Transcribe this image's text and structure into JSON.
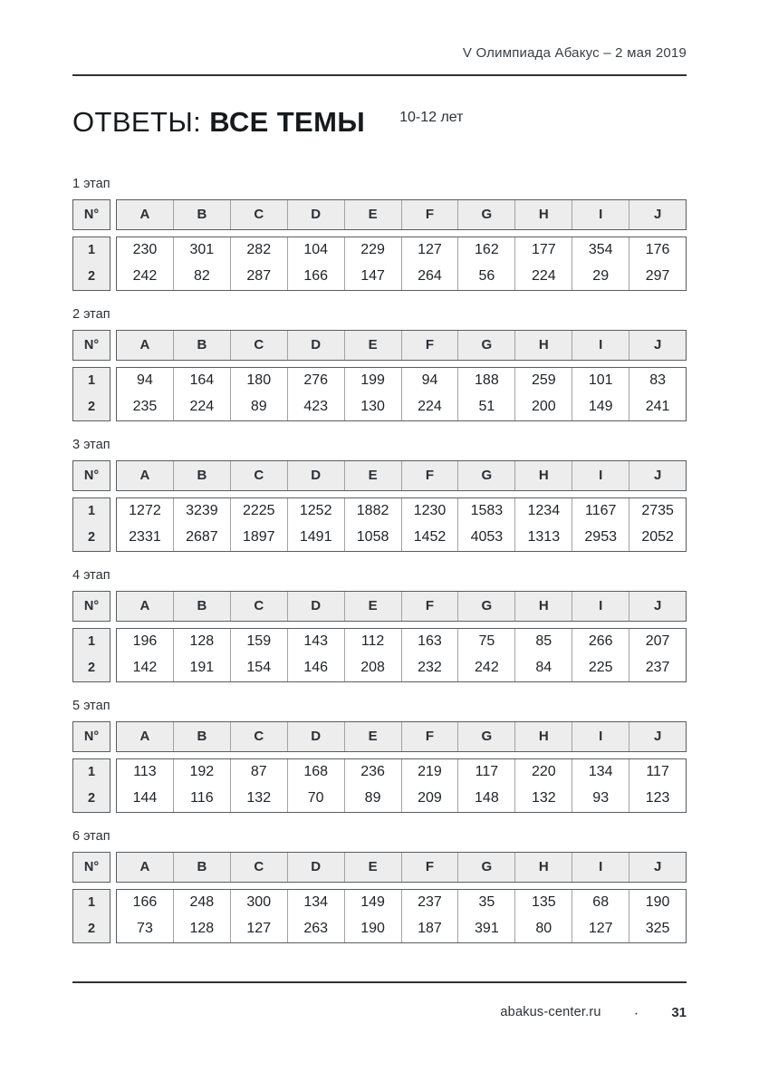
{
  "header": {
    "right_text": "V Олимпиада Абакус – 2 мая 2019"
  },
  "title": {
    "regular_part": "ОТВЕТЫ: ",
    "bold_part": "ВСЕ ТЕМЫ",
    "age_label": "10-12 лет"
  },
  "tables": {
    "corner_label": "N°",
    "columns": [
      "A",
      "B",
      "C",
      "D",
      "E",
      "F",
      "G",
      "H",
      "I",
      "J"
    ],
    "row_labels": [
      "1",
      "2"
    ],
    "sections": [
      {
        "label": "1 этап",
        "rows": [
          [
            230,
            301,
            282,
            104,
            229,
            127,
            162,
            177,
            354,
            176
          ],
          [
            242,
            82,
            287,
            166,
            147,
            264,
            56,
            224,
            29,
            297
          ]
        ]
      },
      {
        "label": "2 этап",
        "rows": [
          [
            94,
            164,
            180,
            276,
            199,
            94,
            188,
            259,
            101,
            83
          ],
          [
            235,
            224,
            89,
            423,
            130,
            224,
            51,
            200,
            149,
            241
          ]
        ]
      },
      {
        "label": "3 этап",
        "rows": [
          [
            1272,
            3239,
            2225,
            1252,
            1882,
            1230,
            1583,
            1234,
            1167,
            2735
          ],
          [
            2331,
            2687,
            1897,
            1491,
            1058,
            1452,
            4053,
            1313,
            2953,
            2052
          ]
        ]
      },
      {
        "label": "4 этап",
        "rows": [
          [
            196,
            128,
            159,
            143,
            112,
            163,
            75,
            85,
            266,
            207
          ],
          [
            142,
            191,
            154,
            146,
            208,
            232,
            242,
            84,
            225,
            237
          ]
        ]
      },
      {
        "label": "5 этап",
        "rows": [
          [
            113,
            192,
            87,
            168,
            236,
            219,
            117,
            220,
            134,
            117
          ],
          [
            144,
            116,
            132,
            70,
            89,
            209,
            148,
            132,
            93,
            123
          ]
        ]
      },
      {
        "label": "6 этап",
        "rows": [
          [
            166,
            248,
            300,
            134,
            149,
            237,
            35,
            135,
            68,
            190
          ],
          [
            73,
            128,
            127,
            263,
            190,
            187,
            391,
            80,
            127,
            325
          ]
        ]
      }
    ]
  },
  "footer": {
    "site": "abakus-center.ru",
    "separator": "·",
    "page_number": "31"
  },
  "colors": {
    "header_cell_fill": "#ededed",
    "outer_border": "#595d60",
    "inner_divider": "#a3a3a3",
    "rule": "#2f3335",
    "text": "#2c3034"
  }
}
